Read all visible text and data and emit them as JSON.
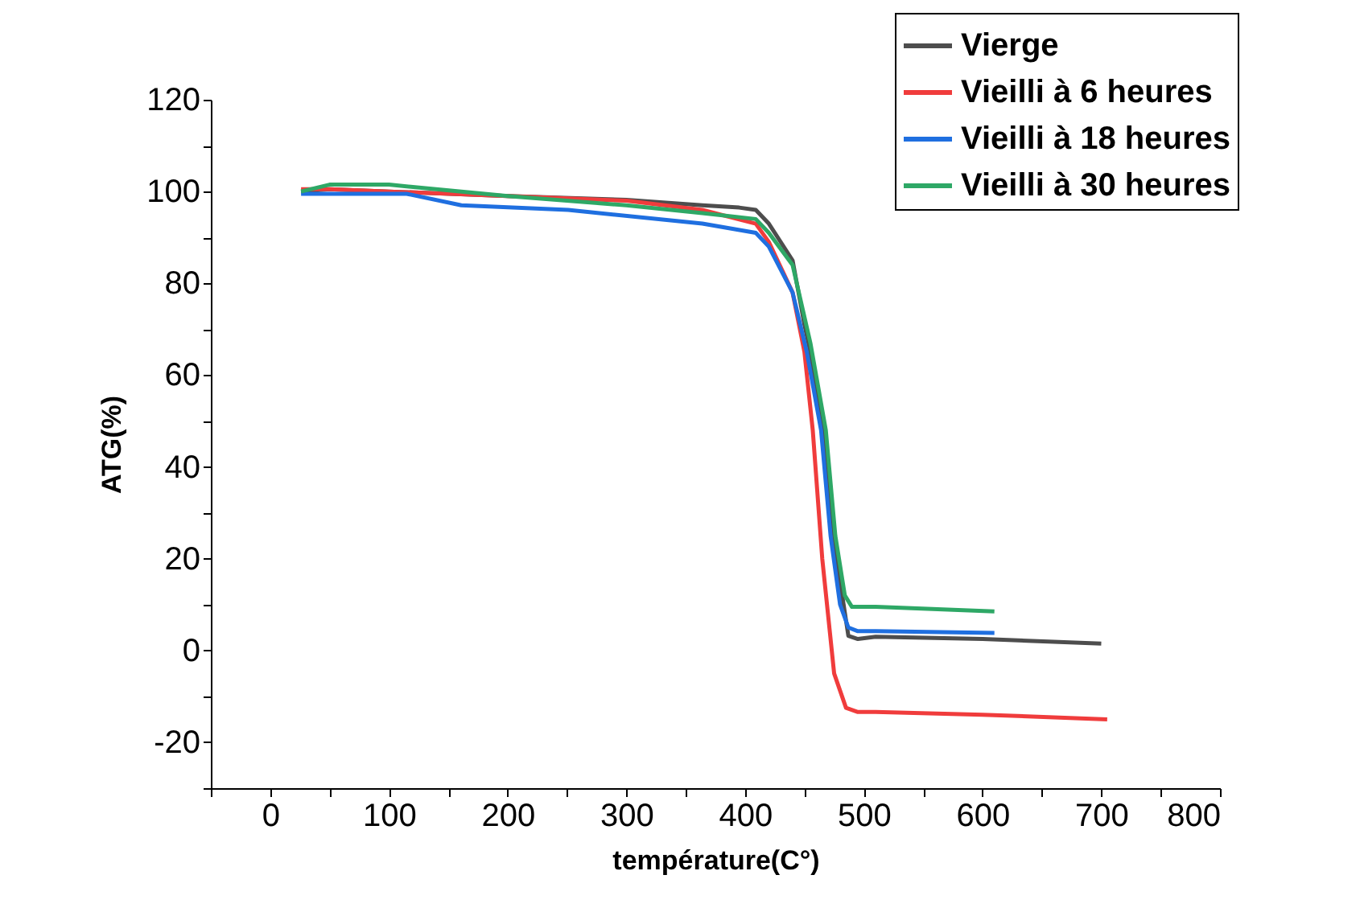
{
  "chart_data": {
    "type": "line",
    "xlabel": "température(C°)",
    "ylabel": "ATG(%)",
    "xlim": [
      -50,
      800
    ],
    "ylim": [
      -30,
      120
    ],
    "xticks": [
      {
        "value": -50,
        "label": null
      },
      0,
      {
        "value": 50,
        "label": null
      },
      100,
      {
        "value": 150,
        "label": null
      },
      200,
      {
        "value": 250,
        "label": null
      },
      300,
      {
        "value": 350,
        "label": null
      },
      400,
      {
        "value": 450,
        "label": null
      },
      500,
      {
        "value": 550,
        "label": null
      },
      600,
      {
        "value": 650,
        "label": null
      },
      700,
      {
        "value": 750,
        "label": null
      },
      800
    ],
    "yticks": [
      {
        "value": -30,
        "label": null
      },
      -20,
      {
        "value": -10,
        "label": null
      },
      0,
      {
        "value": 10,
        "label": null
      },
      20,
      {
        "value": 30,
        "label": null
      },
      40,
      {
        "value": 50,
        "label": null
      },
      60,
      {
        "value": 70,
        "label": null
      },
      80,
      {
        "value": 90,
        "label": null
      },
      100,
      {
        "value": 110,
        "label": null
      },
      120
    ],
    "grid": false,
    "legend": "top right",
    "marker": "none",
    "line_style": "solid",
    "series": [
      {
        "name": "Vierge",
        "color": "#4d4d4d",
        "x": [
          26,
          50,
          100,
          200,
          300,
          364,
          395,
          409,
          420,
          440,
          450,
          455,
          466,
          475,
          480,
          487,
          495,
          510,
          600,
          700
        ],
        "values": [
          100,
          100.5,
          100,
          99,
          98.2,
          97,
          96.5,
          96,
          93,
          85,
          71,
          65,
          48,
          25,
          15,
          3.2,
          2.5,
          3,
          2.5,
          1.5
        ]
      },
      {
        "name": "Vieilli à 6 heures",
        "color": "#f03c3c",
        "x": [
          26,
          50,
          100,
          200,
          300,
          364,
          409,
          420,
          440,
          450,
          457,
          465,
          475,
          485,
          495,
          510,
          600,
          705
        ],
        "values": [
          100.5,
          100.5,
          100,
          99,
          98,
          96,
          93,
          89,
          78,
          65,
          48,
          20,
          -5,
          -12.5,
          -13.4,
          -13.4,
          -14,
          -15
        ]
      },
      {
        "name": "Vieilli à 18 heures",
        "color": "#1f6fe0",
        "x": [
          26,
          50,
          115,
          161,
          251,
          364,
          409,
          420,
          440,
          452,
          464,
          472,
          480,
          487,
          495,
          510,
          610
        ],
        "values": [
          99.5,
          99.5,
          99.5,
          97,
          96,
          93,
          91,
          88,
          78,
          65,
          48,
          25,
          10,
          5,
          4.2,
          4.2,
          3.8
        ]
      },
      {
        "name": "Vieilli à 30 heures",
        "color": "#2ea866",
        "x": [
          26,
          50,
          100,
          200,
          300,
          364,
          409,
          420,
          440,
          455,
          468,
          476,
          484,
          490,
          498,
          510,
          610
        ],
        "values": [
          100,
          101.5,
          101.5,
          99,
          97,
          95.3,
          94,
          91,
          84,
          67,
          48,
          25,
          12,
          9.5,
          9.5,
          9.5,
          8.5
        ]
      }
    ]
  }
}
